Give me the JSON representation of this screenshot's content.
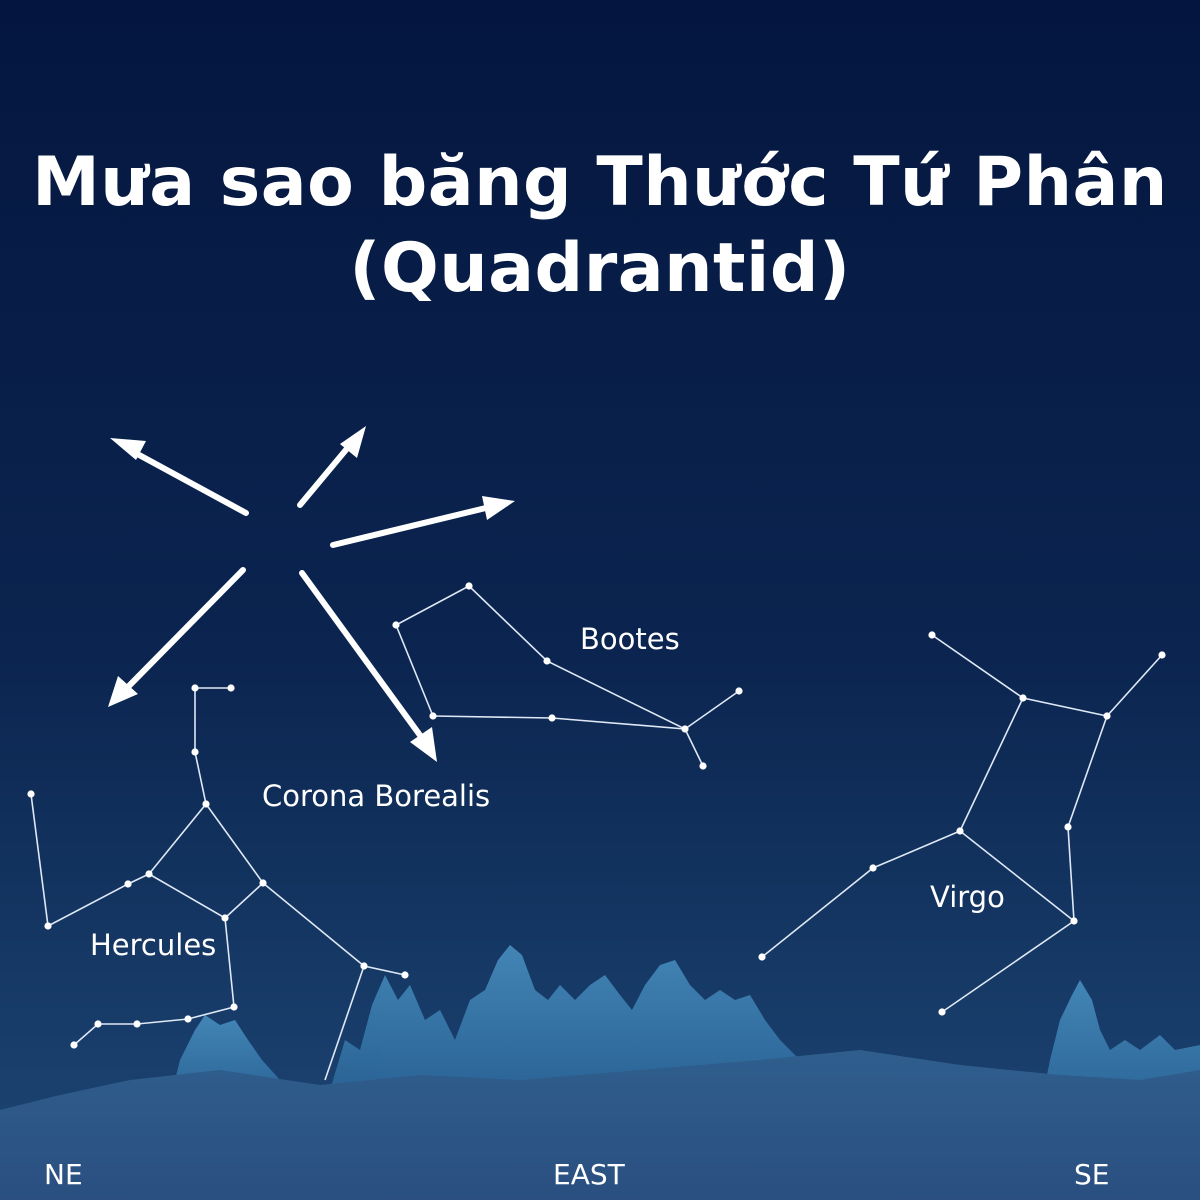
{
  "title": {
    "line1": "Mưa sao băng Thước Tứ Phân",
    "line2": "(Quadrantid)"
  },
  "constellations": {
    "bootes": "Bootes",
    "corona_borealis": "Corona Borealis",
    "hercules": "Hercules",
    "virgo": "Virgo"
  },
  "compass": {
    "northeast": "NE",
    "east": "EAST",
    "southeast": "SE"
  },
  "colors": {
    "sky_top": "#051742",
    "sky_bottom": "#1d4472",
    "trees": "#3d84b6",
    "foreground": "#35608f",
    "lines": "#ffffff"
  }
}
